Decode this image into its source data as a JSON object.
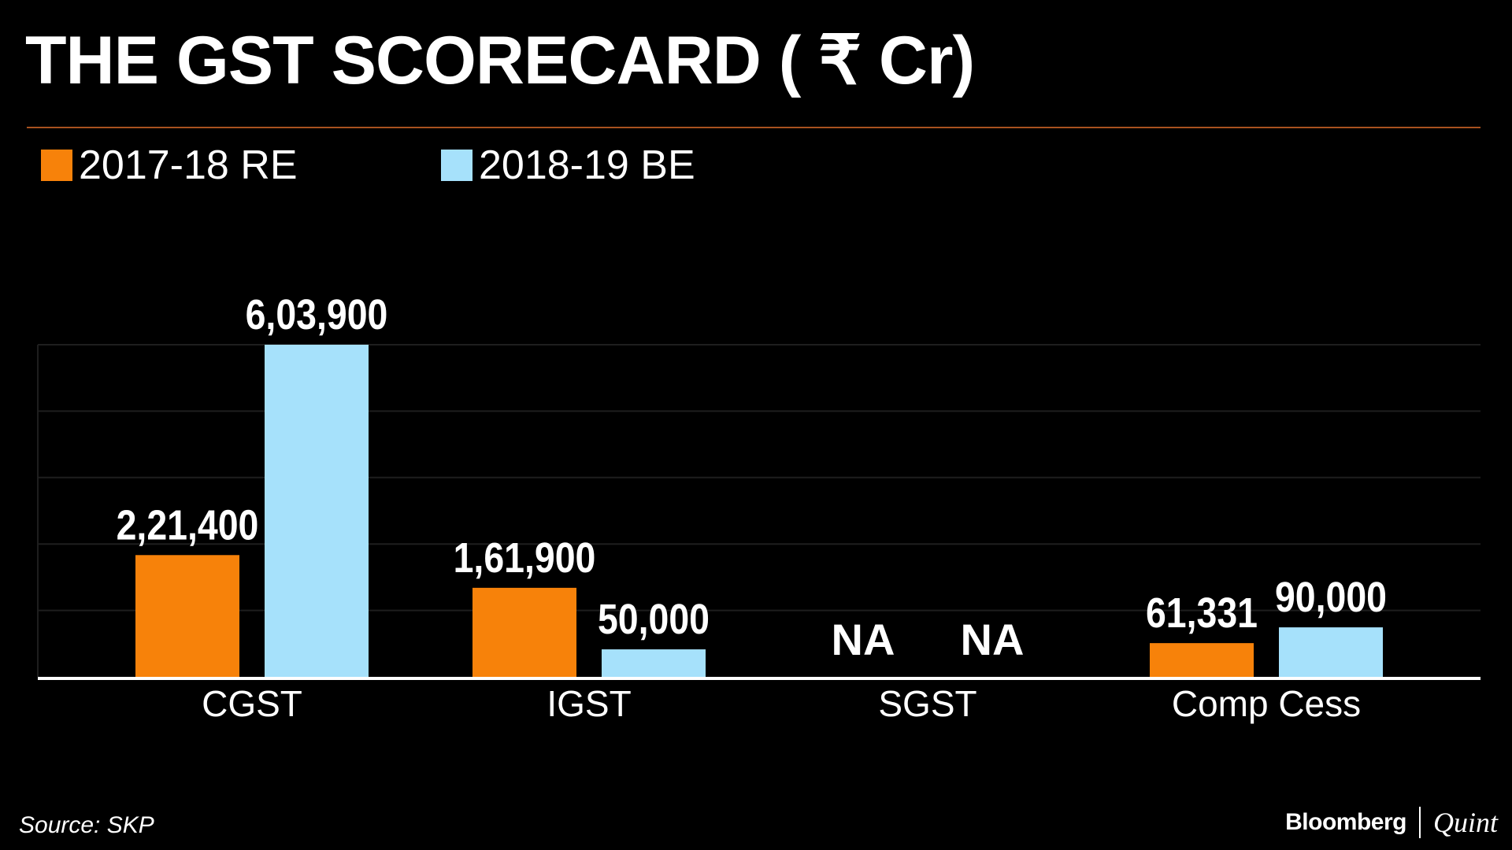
{
  "chart_data": {
    "type": "bar",
    "title": "THE GST SCORECARD ( ₹ Cr)",
    "categories": [
      "CGST",
      "IGST",
      "SGST",
      "Comp Cess"
    ],
    "series": [
      {
        "name": "2017-18 RE",
        "color": "#f7820a",
        "values": [
          221400,
          161900,
          null,
          61331
        ],
        "labels": [
          "2,21,400",
          "1,61,900",
          "NA",
          "61,331"
        ]
      },
      {
        "name": "2018-19 BE",
        "color": "#a6e1fb",
        "values": [
          603900,
          50000,
          null,
          90000
        ],
        "labels": [
          "6,03,900",
          "50,000",
          "NA",
          "90,000"
        ]
      }
    ],
    "ylim": [
      0,
      603900
    ],
    "grid": true,
    "legend": "top-left"
  },
  "footer": {
    "source": "Source: SKP",
    "brand_left": "Bloomberg",
    "brand_right": "Quint"
  }
}
